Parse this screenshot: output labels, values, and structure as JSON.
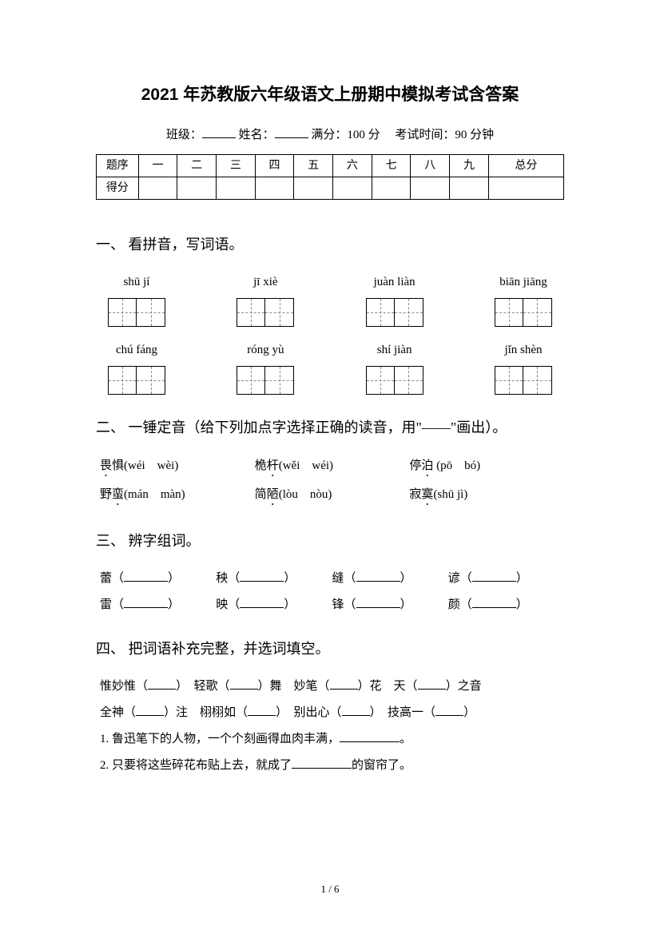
{
  "title": "2021 年苏教版六年级语文上册期中模拟考试含答案",
  "info": {
    "class_label": "班级：",
    "name_label": "姓名：",
    "full_score_label": "满分：100 分",
    "time_label": "考试时间：90 分钟"
  },
  "score_table": {
    "header": [
      "题序",
      "一",
      "二",
      "三",
      "四",
      "五",
      "六",
      "七",
      "八",
      "九",
      "总分"
    ],
    "row2_label": "得分"
  },
  "sections": {
    "s1": {
      "heading": "一、 看拼音，写词语。",
      "row1": [
        {
          "pinyin": "shū jí"
        },
        {
          "pinyin": "jī xiè"
        },
        {
          "pinyin": "juàn liàn"
        },
        {
          "pinyin": "biān jiāng"
        }
      ],
      "row2": [
        {
          "pinyin": "chú fáng"
        },
        {
          "pinyin": "róng yù"
        },
        {
          "pinyin": "shí jiàn"
        },
        {
          "pinyin": "jǐn shèn"
        }
      ]
    },
    "s2": {
      "heading": "二、 一锤定音（给下列加点字选择正确的读音，用\"——\"画出）。",
      "items": [
        [
          {
            "hanzi_pre": "",
            "dot": "畏",
            "hanzi_post": "惧",
            "pinyin": "(wéi　wèi)"
          },
          {
            "hanzi_pre": "桅",
            "dot": "杆",
            "hanzi_post": "",
            "pinyin": "(wěi　wéi)"
          },
          {
            "hanzi_pre": "停",
            "dot": "泊",
            "hanzi_post": "",
            "pinyin": " (pō　bó)"
          }
        ],
        [
          {
            "hanzi_pre": "野",
            "dot": "蛮",
            "hanzi_post": "",
            "pinyin": "(mán　màn)"
          },
          {
            "hanzi_pre": "简",
            "dot": "陋",
            "hanzi_post": "",
            "pinyin": "(lòu　nòu)"
          },
          {
            "hanzi_pre": "寂",
            "dot": "寞",
            "hanzi_post": "",
            "pinyin": "(shū jì)"
          }
        ]
      ]
    },
    "s3": {
      "heading": "三、 辨字组词。",
      "rows": [
        [
          "蕾",
          "秧",
          "缝",
          "谚"
        ],
        [
          "雷",
          "映",
          "锋",
          "颜"
        ]
      ]
    },
    "s4": {
      "heading": "四、 把词语补充完整，并选词填空。",
      "line1_parts": [
        "惟妙惟（",
        "）　轻歌（",
        "）舞　妙笔（",
        "）花　天（",
        "）之音"
      ],
      "line2_parts": [
        "全神（",
        "）注　栩栩如（",
        "）　别出心（",
        "）　技高一（",
        "）"
      ],
      "q1_pre": "1. 鲁迅笔下的人物，一个个刻画得血肉丰满，",
      "q1_post": "。",
      "q2_pre": "2. 只要将这些碎花布贴上去，就成了",
      "q2_post": "的窗帘了。"
    }
  },
  "page_number": "1 / 6"
}
